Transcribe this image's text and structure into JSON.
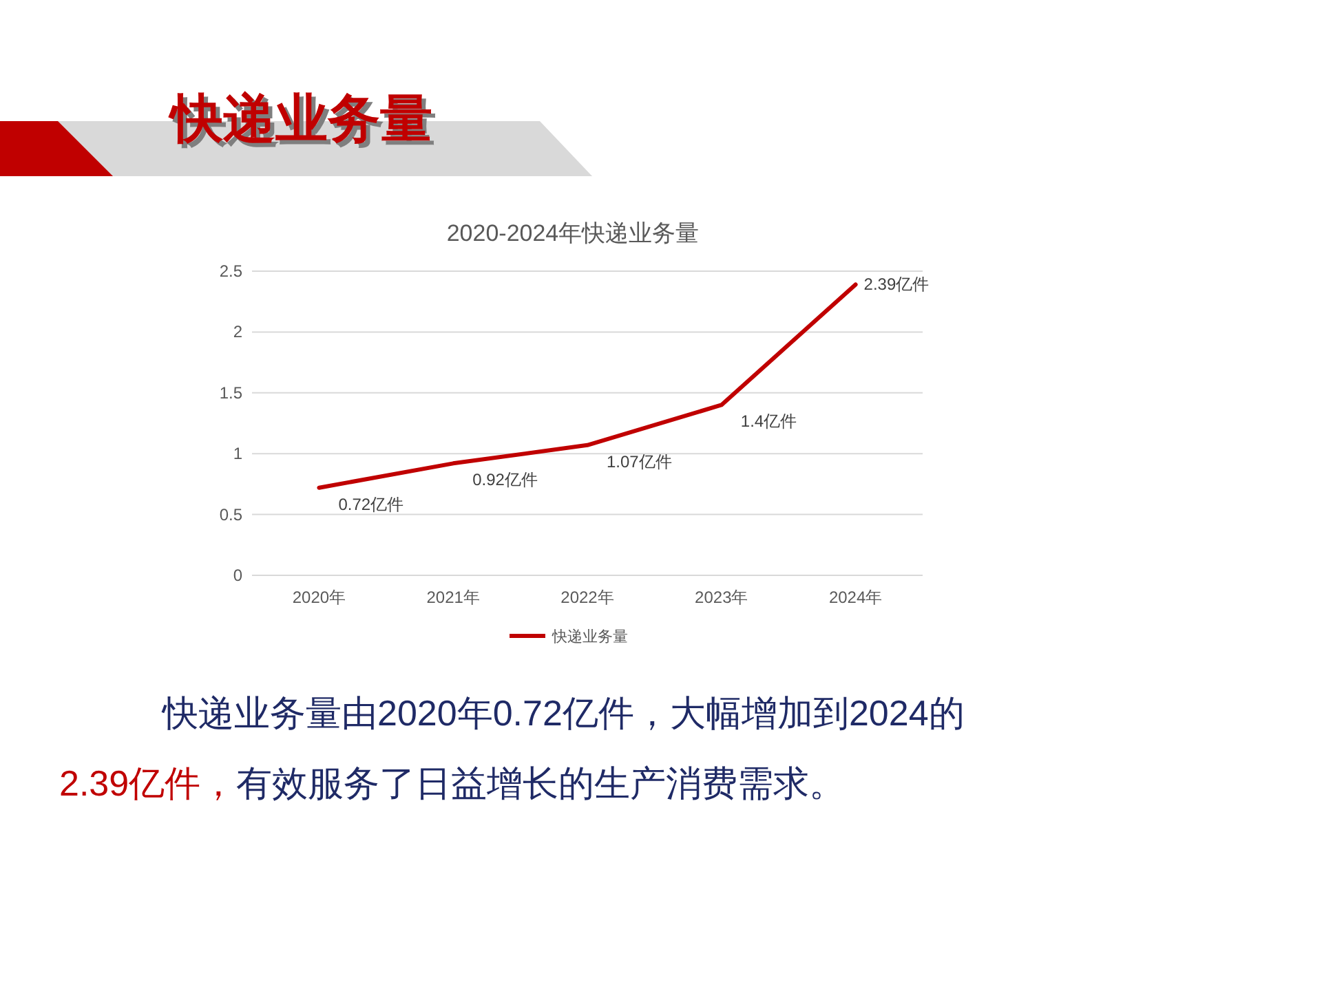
{
  "chart_data": {
    "type": "line",
    "title": "快递业务量",
    "subtitle": "2020-2024年快递业务量",
    "categories": [
      "2020年",
      "2021年",
      "2022年",
      "2023年",
      "2024年"
    ],
    "series": [
      {
        "name": "快递业务量",
        "color": "#c00000",
        "values": [
          0.72,
          0.92,
          1.07,
          1.4,
          2.39
        ],
        "value_labels": [
          "0.72亿件",
          "0.92亿件",
          "1.07亿件",
          "1.4亿件",
          "2.39亿件"
        ]
      }
    ],
    "ylim": [
      0,
      2.5
    ],
    "yticks": [
      0,
      0.5,
      1,
      1.5,
      2,
      2.5
    ],
    "grid": "y",
    "legend": "bottom",
    "marker": "none",
    "line_style": "solid",
    "annotations": [
      "快递业务量由2020年0.72亿件，大幅增加到2024的",
      "2.39亿件，",
      "有效服务了日益增长的生产消费需求。"
    ]
  }
}
